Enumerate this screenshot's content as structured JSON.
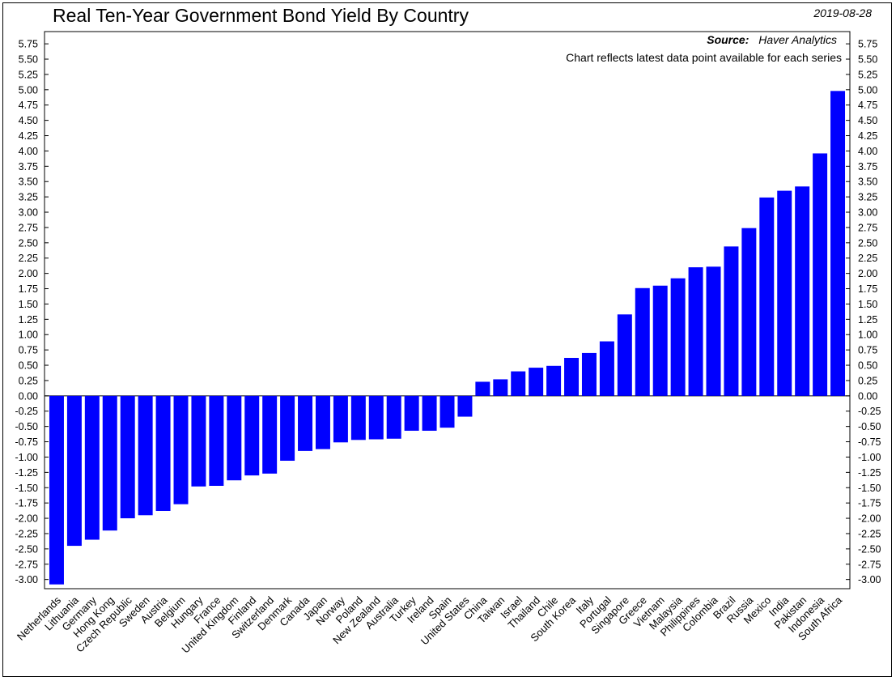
{
  "chart_data": {
    "type": "bar",
    "title": "Real Ten-Year Government Bond Yield By Country",
    "date": "2019-08-28",
    "source_label": "Source:",
    "source_value": "Haver Analytics",
    "note": "Chart reflects latest data point available for each series",
    "categories": [
      "Netherlands",
      "Lithuania",
      "Germany",
      "Hong Kong",
      "Czech Republic",
      "Sweden",
      "Austria",
      "Belgium",
      "Hungary",
      "France",
      "United Kingdom",
      "Finland",
      "Switzerland",
      "Denmark",
      "Canada",
      "Japan",
      "Norway",
      "Poland",
      "New Zealand",
      "Australia",
      "Turkey",
      "Ireland",
      "Spain",
      "United States",
      "China",
      "Taiwan",
      "Israel",
      "Thailand",
      "Chile",
      "South Korea",
      "Italy",
      "Portugal",
      "Singapore",
      "Greece",
      "Vietnam",
      "Malaysia",
      "Philippines",
      "Colombia",
      "Brazil",
      "Russia",
      "Mexico",
      "India",
      "Pakistan",
      "Indonesia",
      "South Africa"
    ],
    "values": [
      -3.08,
      -2.45,
      -2.35,
      -2.2,
      -2.0,
      -1.95,
      -1.88,
      -1.77,
      -1.48,
      -1.47,
      -1.38,
      -1.3,
      -1.27,
      -1.06,
      -0.9,
      -0.87,
      -0.76,
      -0.72,
      -0.71,
      -0.7,
      -0.57,
      -0.57,
      -0.52,
      -0.34,
      0.23,
      0.27,
      0.4,
      0.46,
      0.49,
      0.62,
      0.7,
      0.89,
      1.33,
      1.76,
      1.8,
      1.92,
      2.1,
      2.11,
      2.44,
      2.74,
      3.24,
      3.35,
      3.42,
      3.96,
      4.98
    ],
    "ylim": [
      -3.15,
      5.95
    ],
    "yticks": [
      "5.75",
      "5.50",
      "5.25",
      "5.00",
      "4.75",
      "4.50",
      "4.25",
      "4.00",
      "3.75",
      "3.50",
      "3.25",
      "3.00",
      "2.75",
      "2.50",
      "2.25",
      "2.00",
      "1.75",
      "1.50",
      "1.25",
      "1.00",
      "0.75",
      "0.50",
      "0.25",
      "0.00",
      "-0.25",
      "-0.50",
      "-0.75",
      "-1.00",
      "-1.25",
      "-1.50",
      "-1.75",
      "-2.00",
      "-2.25",
      "-2.50",
      "-2.75",
      "-3.00"
    ],
    "bar_color": "#0000ff",
    "grid": false,
    "xlabel": "",
    "ylabel": ""
  }
}
